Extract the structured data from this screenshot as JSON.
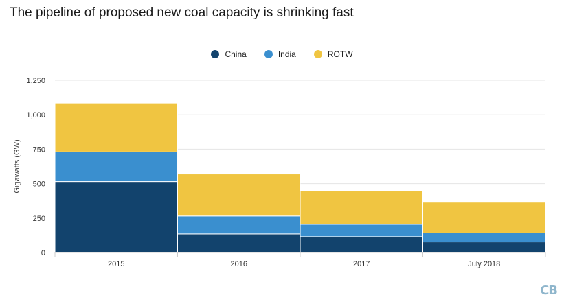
{
  "chart_data": {
    "type": "bar",
    "stacked": true,
    "title": "The pipeline of proposed new coal capacity is shrinking fast",
    "ylabel": "Gigawatts (GW)",
    "xlabel": "",
    "categories": [
      "2015",
      "2016",
      "2017",
      "July 2018"
    ],
    "ylim": [
      0,
      1250
    ],
    "yticks": [
      0,
      250,
      500,
      750,
      1000,
      1250
    ],
    "ytick_labels": [
      "0",
      "250",
      "500",
      "750",
      "1,000",
      "1,250"
    ],
    "grid": true,
    "legend_position": "top-center",
    "series": [
      {
        "name": "China",
        "color": "#12436d",
        "values": [
          515,
          135,
          115,
          77
        ]
      },
      {
        "name": "India",
        "color": "#3a8fcf",
        "values": [
          215,
          130,
          90,
          65
        ]
      },
      {
        "name": "ROTW",
        "color": "#f0c541",
        "values": [
          355,
          305,
          245,
          223
        ]
      }
    ]
  },
  "logo_text": "CB"
}
